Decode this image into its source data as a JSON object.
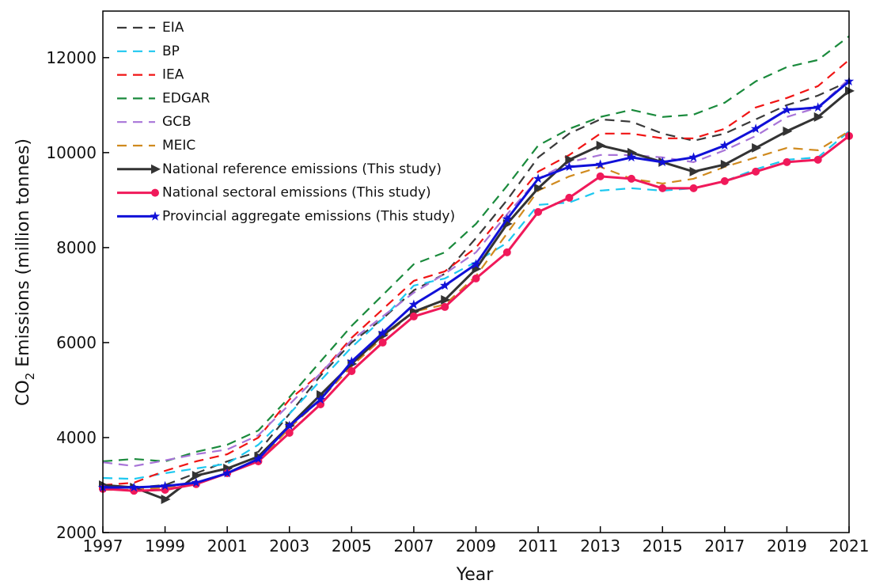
{
  "chart_data": {
    "type": "line",
    "x_label": "Year",
    "y_label": {
      "main": "CO",
      "sub": "2",
      "rest": " Emissions (million tonnes)"
    },
    "x": [
      1997,
      1998,
      1999,
      2000,
      2001,
      2002,
      2003,
      2004,
      2005,
      2006,
      2007,
      2008,
      2009,
      2010,
      2011,
      2012,
      2013,
      2014,
      2015,
      2016,
      2017,
      2018,
      2019,
      2020,
      2021
    ],
    "xlim": [
      1997,
      2021
    ],
    "xticks": [
      1997,
      1999,
      2001,
      2003,
      2005,
      2007,
      2009,
      2011,
      2013,
      2015,
      2017,
      2019,
      2021
    ],
    "ylim": [
      2000,
      12980
    ],
    "yticks": [
      2000,
      4000,
      6000,
      8000,
      10000,
      12000
    ],
    "legend_position": "upper-left",
    "series": [
      {
        "name": "EIA",
        "color": "#3a3a3a",
        "style": "dashed",
        "marker": "none",
        "values": [
          2990,
          2950,
          3000,
          3250,
          3500,
          3700,
          4500,
          5300,
          6000,
          6500,
          7100,
          7450,
          8200,
          9000,
          9900,
          10400,
          10700,
          10650,
          10400,
          10250,
          10400,
          10700,
          11000,
          11200,
          11500
        ]
      },
      {
        "name": "BP",
        "color": "#1ec8f0",
        "style": "dashed",
        "marker": "none",
        "values": [
          3150,
          3130,
          3250,
          3350,
          3450,
          3850,
          4500,
          5200,
          5900,
          6500,
          7200,
          7350,
          7700,
          8100,
          8900,
          8950,
          9200,
          9250,
          9200,
          9250,
          9400,
          9650,
          9850,
          9900,
          10450
        ]
      },
      {
        "name": "IEA",
        "color": "#f01414",
        "style": "dashed",
        "marker": "none",
        "values": [
          3000,
          3050,
          3300,
          3500,
          3650,
          4000,
          4800,
          5350,
          6100,
          6700,
          7300,
          7500,
          8000,
          8800,
          9600,
          9950,
          10400,
          10400,
          10300,
          10300,
          10500,
          10950,
          11150,
          11400,
          11950
        ]
      },
      {
        "name": "EDGAR",
        "color": "#1a8a3c",
        "style": "dashed",
        "marker": "none",
        "values": [
          3500,
          3550,
          3500,
          3700,
          3850,
          4150,
          4850,
          5600,
          6350,
          7000,
          7650,
          7900,
          8500,
          9300,
          10150,
          10500,
          10750,
          10900,
          10750,
          10800,
          11050,
          11500,
          11800,
          11950,
          12450
        ]
      },
      {
        "name": "GCB",
        "color": "#a874d8",
        "style": "dashed",
        "marker": "none",
        "values": [
          3480,
          3400,
          3520,
          3650,
          3750,
          4050,
          4700,
          5350,
          6050,
          6550,
          7050,
          7450,
          7900,
          8700,
          9450,
          9800,
          9950,
          9950,
          9900,
          9800,
          10050,
          10350,
          10750,
          10950,
          11550
        ]
      },
      {
        "name": "MEIC",
        "color": "#d08a1e",
        "style": "dashed",
        "marker": "none",
        "values": [
          2900,
          2900,
          2950,
          3050,
          3250,
          3500,
          4200,
          4800,
          5500,
          6100,
          6650,
          6800,
          7400,
          8300,
          9200,
          9500,
          9700,
          9450,
          9350,
          9450,
          9700,
          9900,
          10100,
          10050,
          10450
        ]
      },
      {
        "name": "National reference emissions (This study)",
        "color": "#333333",
        "style": "solid",
        "marker": "triangle",
        "values": [
          3000,
          2950,
          2700,
          3200,
          3350,
          3600,
          4250,
          4900,
          5550,
          6150,
          6650,
          6900,
          7550,
          8500,
          9250,
          9850,
          10150,
          10000,
          9800,
          9600,
          9750,
          10100,
          10450,
          10750,
          11300
        ]
      },
      {
        "name": "National sectoral emissions (This study)",
        "color": "#f0195a",
        "style": "solid",
        "marker": "circle",
        "values": [
          2920,
          2880,
          2900,
          3020,
          3250,
          3500,
          4100,
          4700,
          5400,
          6000,
          6550,
          6750,
          7350,
          7900,
          8750,
          9050,
          9500,
          9450,
          9250,
          9250,
          9400,
          9600,
          9800,
          9850,
          10350
        ]
      },
      {
        "name": "Provincial aggregate emissions (This study)",
        "color": "#1010d8",
        "style": "solid",
        "marker": "star",
        "values": [
          2950,
          2950,
          2980,
          3050,
          3250,
          3550,
          4250,
          4800,
          5600,
          6200,
          6800,
          7200,
          7650,
          8600,
          9450,
          9700,
          9750,
          9900,
          9800,
          9900,
          10150,
          10500,
          10900,
          10950,
          11500
        ]
      }
    ]
  }
}
